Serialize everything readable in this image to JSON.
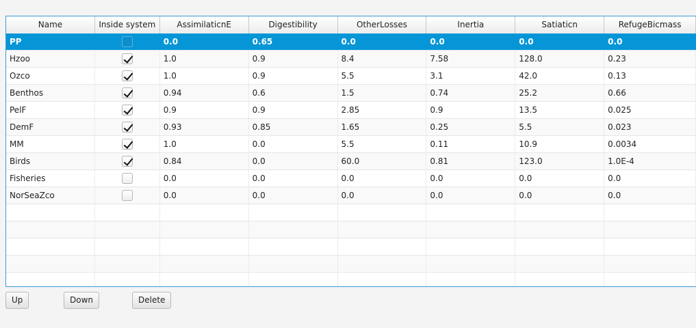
{
  "table": {
    "columns": [
      "Name",
      "Inside system",
      "AssimilaticnE",
      "Digestibility",
      "OtherLosses",
      "Inertia",
      "Satiaticn",
      "RefugeBicmass"
    ],
    "selected_row": 0,
    "rows": [
      {
        "name": "PP",
        "inside": false,
        "assim": "0.0",
        "digest": "0.65",
        "other": "0.0",
        "inertia": "0.0",
        "satiation": "0.0",
        "refuge": "0.0"
      },
      {
        "name": "Hzoo",
        "inside": true,
        "assim": "1.0",
        "digest": "0.9",
        "other": "8.4",
        "inertia": "7.58",
        "satiation": "128.0",
        "refuge": "0.23"
      },
      {
        "name": "Ozco",
        "inside": true,
        "assim": "1.0",
        "digest": "0.9",
        "other": "5.5",
        "inertia": "3.1",
        "satiation": "42.0",
        "refuge": "0.13"
      },
      {
        "name": "Benthos",
        "inside": true,
        "assim": "0.94",
        "digest": "0.6",
        "other": "1.5",
        "inertia": "0.74",
        "satiation": "25.2",
        "refuge": "0.66"
      },
      {
        "name": "PelF",
        "inside": true,
        "assim": "0.9",
        "digest": "0.9",
        "other": "2.85",
        "inertia": "0.9",
        "satiation": "13.5",
        "refuge": "0.025"
      },
      {
        "name": "DemF",
        "inside": true,
        "assim": "0.93",
        "digest": "0.85",
        "other": "1.65",
        "inertia": "0.25",
        "satiation": "5.5",
        "refuge": "0.023"
      },
      {
        "name": "MM",
        "inside": true,
        "assim": "1.0",
        "digest": "0.0",
        "other": "5.5",
        "inertia": "0.11",
        "satiation": "10.9",
        "refuge": "0.0034"
      },
      {
        "name": "Birds",
        "inside": true,
        "assim": "0.84",
        "digest": "0.0",
        "other": "60.0",
        "inertia": "0.81",
        "satiation": "123.0",
        "refuge": "1.0E-4"
      },
      {
        "name": "Fisheries",
        "inside": false,
        "assim": "0.0",
        "digest": "0.0",
        "other": "0.0",
        "inertia": "0.0",
        "satiation": "0.0",
        "refuge": "0.0"
      },
      {
        "name": "NorSeaZco",
        "inside": false,
        "assim": "0.0",
        "digest": "0.0",
        "other": "0.0",
        "inertia": "0.0",
        "satiation": "0.0",
        "refuge": "0.0"
      }
    ],
    "empty_rows": 5
  },
  "buttons": {
    "up": "Up",
    "down": "Down",
    "delete": "Delete"
  },
  "icons": {
    "checkbox": "checkmark-icon"
  }
}
